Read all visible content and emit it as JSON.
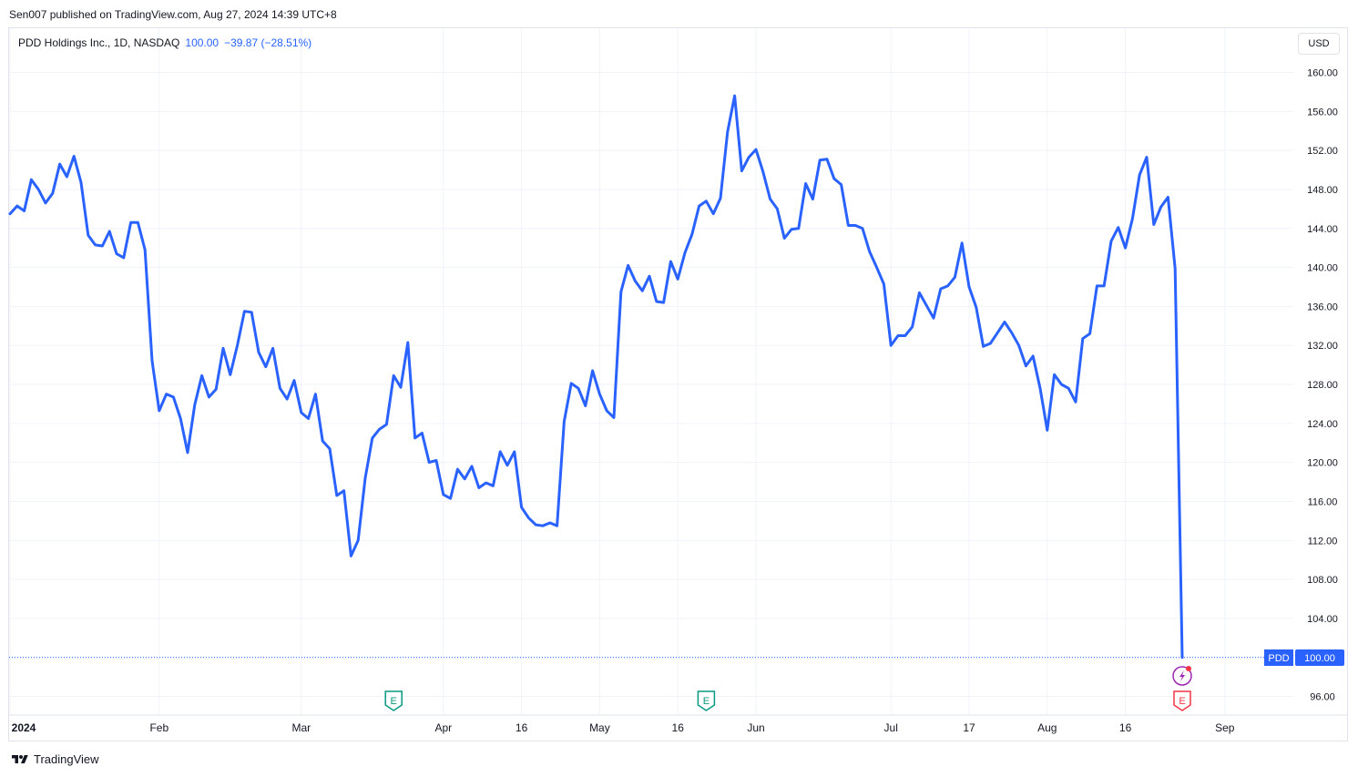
{
  "header": {
    "published_text": "Sen007 published on TradingView.com, Aug 27, 2024 14:39 UTC+8"
  },
  "legend": {
    "symbol": "PDD Holdings Inc., 1D, NASDAQ",
    "last": "100.00",
    "change": "−39.87 (−28.51%)"
  },
  "price_scale": {
    "currency_label": "USD",
    "ticker_badge": "PDD",
    "last_price_badge": "100.00"
  },
  "footer": {
    "brand": "TradingView"
  },
  "colors": {
    "line": "#2962ff",
    "grid": "#f0f3fa",
    "earnings_past": "#089981",
    "earnings_future": "#f23645",
    "dividend": "#9c27b0"
  },
  "markers": {
    "earnings_label": "E",
    "split_icon": "lightning-icon"
  },
  "chart_data": {
    "type": "line",
    "title": "PDD Holdings Inc., 1D, NASDAQ",
    "ylim": [
      94.5,
      162
    ],
    "grid": true,
    "y_ticks": [
      "96.00",
      "100.00",
      "104.00",
      "108.00",
      "112.00",
      "116.00",
      "120.00",
      "124.00",
      "128.00",
      "132.00",
      "136.00",
      "140.00",
      "144.00",
      "148.00",
      "152.00",
      "156.00",
      "160.00"
    ],
    "x_tick_labels": [
      {
        "label": "2024",
        "date": "2024-01-02"
      },
      {
        "label": "Feb",
        "date": "2024-02-01"
      },
      {
        "label": "Mar",
        "date": "2024-03-01"
      },
      {
        "label": "Apr",
        "date": "2024-04-01"
      },
      {
        "label": "16",
        "date": "2024-04-16"
      },
      {
        "label": "May",
        "date": "2024-05-01"
      },
      {
        "label": "16",
        "date": "2024-05-16"
      },
      {
        "label": "Jun",
        "date": "2024-06-03"
      },
      {
        "label": "Jul",
        "date": "2024-07-01"
      },
      {
        "label": "17",
        "date": "2024-07-17"
      },
      {
        "label": "Aug",
        "date": "2024-08-01"
      },
      {
        "label": "16",
        "date": "2024-08-16"
      },
      {
        "label": "Sep",
        "date": "2024-09-03"
      }
    ],
    "events": [
      {
        "type": "earnings",
        "date": "2024-03-20",
        "status": "past"
      },
      {
        "type": "earnings",
        "date": "2024-05-22",
        "status": "past"
      },
      {
        "type": "earnings",
        "date": "2024-08-26",
        "status": "upcoming"
      },
      {
        "type": "dividend",
        "date": "2024-08-26"
      }
    ],
    "series": [
      {
        "values": [
          [
            "2024-01-02",
            145.5
          ],
          [
            "2024-01-03",
            146.3
          ],
          [
            "2024-01-04",
            145.8
          ],
          [
            "2024-01-05",
            149.0
          ],
          [
            "2024-01-08",
            148.0
          ],
          [
            "2024-01-09",
            146.6
          ],
          [
            "2024-01-10",
            147.6
          ],
          [
            "2024-01-11",
            150.6
          ],
          [
            "2024-01-12",
            149.3
          ],
          [
            "2024-01-16",
            151.4
          ],
          [
            "2024-01-17",
            148.7
          ],
          [
            "2024-01-18",
            143.3
          ],
          [
            "2024-01-19",
            142.3
          ],
          [
            "2024-01-22",
            142.2
          ],
          [
            "2024-01-23",
            143.7
          ],
          [
            "2024-01-24",
            141.4
          ],
          [
            "2024-01-25",
            141.0
          ],
          [
            "2024-01-26",
            144.6
          ],
          [
            "2024-01-29",
            144.6
          ],
          [
            "2024-01-30",
            141.8
          ],
          [
            "2024-01-31",
            130.4
          ],
          [
            "2024-02-01",
            125.3
          ],
          [
            "2024-02-02",
            127.0
          ],
          [
            "2024-02-05",
            126.7
          ],
          [
            "2024-02-06",
            124.5
          ],
          [
            "2024-02-07",
            121.0
          ],
          [
            "2024-02-08",
            125.9
          ],
          [
            "2024-02-09",
            128.9
          ],
          [
            "2024-02-12",
            126.7
          ],
          [
            "2024-02-13",
            127.5
          ],
          [
            "2024-02-14",
            131.7
          ],
          [
            "2024-02-15",
            129.0
          ],
          [
            "2024-02-16",
            132.0
          ],
          [
            "2024-02-20",
            135.5
          ],
          [
            "2024-02-21",
            135.4
          ],
          [
            "2024-02-22",
            131.3
          ],
          [
            "2024-02-23",
            129.8
          ],
          [
            "2024-02-26",
            131.7
          ],
          [
            "2024-02-27",
            127.6
          ],
          [
            "2024-02-28",
            126.5
          ],
          [
            "2024-02-29",
            128.4
          ],
          [
            "2024-03-01",
            125.1
          ],
          [
            "2024-03-04",
            124.5
          ],
          [
            "2024-03-05",
            127.0
          ],
          [
            "2024-03-06",
            122.2
          ],
          [
            "2024-03-07",
            121.4
          ],
          [
            "2024-03-08",
            116.6
          ],
          [
            "2024-03-11",
            117.1
          ],
          [
            "2024-03-12",
            110.4
          ],
          [
            "2024-03-13",
            112.0
          ],
          [
            "2024-03-14",
            118.4
          ],
          [
            "2024-03-15",
            122.5
          ],
          [
            "2024-03-18",
            123.4
          ],
          [
            "2024-03-19",
            123.9
          ],
          [
            "2024-03-20",
            128.9
          ],
          [
            "2024-03-21",
            127.7
          ],
          [
            "2024-03-22",
            132.3
          ],
          [
            "2024-03-25",
            122.5
          ],
          [
            "2024-03-26",
            123.0
          ],
          [
            "2024-03-27",
            120.0
          ],
          [
            "2024-03-28",
            120.2
          ],
          [
            "2024-04-01",
            116.7
          ],
          [
            "2024-04-02",
            116.3
          ],
          [
            "2024-04-03",
            119.3
          ],
          [
            "2024-04-04",
            118.3
          ],
          [
            "2024-04-05",
            119.6
          ],
          [
            "2024-04-08",
            117.4
          ],
          [
            "2024-04-09",
            117.9
          ],
          [
            "2024-04-10",
            117.6
          ],
          [
            "2024-04-11",
            121.1
          ],
          [
            "2024-04-12",
            119.7
          ],
          [
            "2024-04-15",
            121.1
          ],
          [
            "2024-04-16",
            115.4
          ],
          [
            "2024-04-17",
            114.3
          ],
          [
            "2024-04-18",
            113.6
          ],
          [
            "2024-04-19",
            113.5
          ],
          [
            "2024-04-22",
            113.8
          ],
          [
            "2024-04-23",
            113.5
          ],
          [
            "2024-04-24",
            124.2
          ],
          [
            "2024-04-25",
            128.1
          ],
          [
            "2024-04-26",
            127.6
          ],
          [
            "2024-04-29",
            125.8
          ],
          [
            "2024-04-30",
            129.4
          ],
          [
            "2024-05-01",
            127.0
          ],
          [
            "2024-05-02",
            125.3
          ],
          [
            "2024-05-03",
            124.6
          ],
          [
            "2024-05-06",
            137.5
          ],
          [
            "2024-05-07",
            140.2
          ],
          [
            "2024-05-08",
            138.6
          ],
          [
            "2024-05-09",
            137.6
          ],
          [
            "2024-05-10",
            139.1
          ],
          [
            "2024-05-13",
            136.5
          ],
          [
            "2024-05-14",
            136.4
          ],
          [
            "2024-05-15",
            140.6
          ],
          [
            "2024-05-16",
            138.8
          ],
          [
            "2024-05-17",
            141.5
          ],
          [
            "2024-05-20",
            143.4
          ],
          [
            "2024-05-21",
            146.3
          ],
          [
            "2024-05-22",
            146.8
          ],
          [
            "2024-05-23",
            145.5
          ],
          [
            "2024-05-24",
            147.1
          ],
          [
            "2024-05-28",
            153.9
          ],
          [
            "2024-05-29",
            157.6
          ],
          [
            "2024-05-30",
            149.9
          ],
          [
            "2024-05-31",
            151.3
          ],
          [
            "2024-06-03",
            152.1
          ],
          [
            "2024-06-04",
            149.8
          ],
          [
            "2024-06-05",
            147.0
          ],
          [
            "2024-06-06",
            146.0
          ],
          [
            "2024-06-07",
            143.0
          ],
          [
            "2024-06-10",
            143.9
          ],
          [
            "2024-06-11",
            144.0
          ],
          [
            "2024-06-12",
            148.6
          ],
          [
            "2024-06-13",
            147.0
          ],
          [
            "2024-06-14",
            151.0
          ],
          [
            "2024-06-17",
            151.1
          ],
          [
            "2024-06-18",
            149.1
          ],
          [
            "2024-06-20",
            148.5
          ],
          [
            "2024-06-21",
            144.3
          ],
          [
            "2024-06-24",
            144.3
          ],
          [
            "2024-06-25",
            144.0
          ],
          [
            "2024-06-26",
            141.6
          ],
          [
            "2024-06-27",
            140.0
          ],
          [
            "2024-06-28",
            138.3
          ],
          [
            "2024-07-01",
            132.0
          ],
          [
            "2024-07-02",
            133.0
          ],
          [
            "2024-07-03",
            133.0
          ],
          [
            "2024-07-05",
            133.9
          ],
          [
            "2024-07-08",
            137.4
          ],
          [
            "2024-07-09",
            136.1
          ],
          [
            "2024-07-10",
            134.8
          ],
          [
            "2024-07-11",
            137.8
          ],
          [
            "2024-07-12",
            138.1
          ],
          [
            "2024-07-15",
            139.0
          ],
          [
            "2024-07-16",
            142.5
          ],
          [
            "2024-07-17",
            138.0
          ],
          [
            "2024-07-18",
            135.9
          ],
          [
            "2024-07-19",
            131.9
          ],
          [
            "2024-07-22",
            132.2
          ],
          [
            "2024-07-23",
            133.3
          ],
          [
            "2024-07-24",
            134.4
          ],
          [
            "2024-07-25",
            133.3
          ],
          [
            "2024-07-26",
            132.0
          ],
          [
            "2024-07-29",
            129.9
          ],
          [
            "2024-07-30",
            130.9
          ],
          [
            "2024-07-31",
            127.6
          ],
          [
            "2024-08-01",
            123.3
          ],
          [
            "2024-08-02",
            129.0
          ],
          [
            "2024-08-05",
            128.0
          ],
          [
            "2024-08-06",
            127.6
          ],
          [
            "2024-08-07",
            126.2
          ],
          [
            "2024-08-08",
            132.7
          ],
          [
            "2024-08-09",
            133.2
          ],
          [
            "2024-08-12",
            138.1
          ],
          [
            "2024-08-13",
            138.1
          ],
          [
            "2024-08-14",
            142.7
          ],
          [
            "2024-08-15",
            144.1
          ],
          [
            "2024-08-16",
            142.0
          ],
          [
            "2024-08-19",
            145.0
          ],
          [
            "2024-08-20",
            149.5
          ],
          [
            "2024-08-21",
            151.3
          ],
          [
            "2024-08-22",
            144.4
          ],
          [
            "2024-08-23",
            146.2
          ],
          [
            "2024-08-23b",
            147.2
          ],
          [
            "2024-08-23c",
            139.9
          ],
          [
            "2024-08-26",
            100.0
          ]
        ]
      }
    ]
  }
}
